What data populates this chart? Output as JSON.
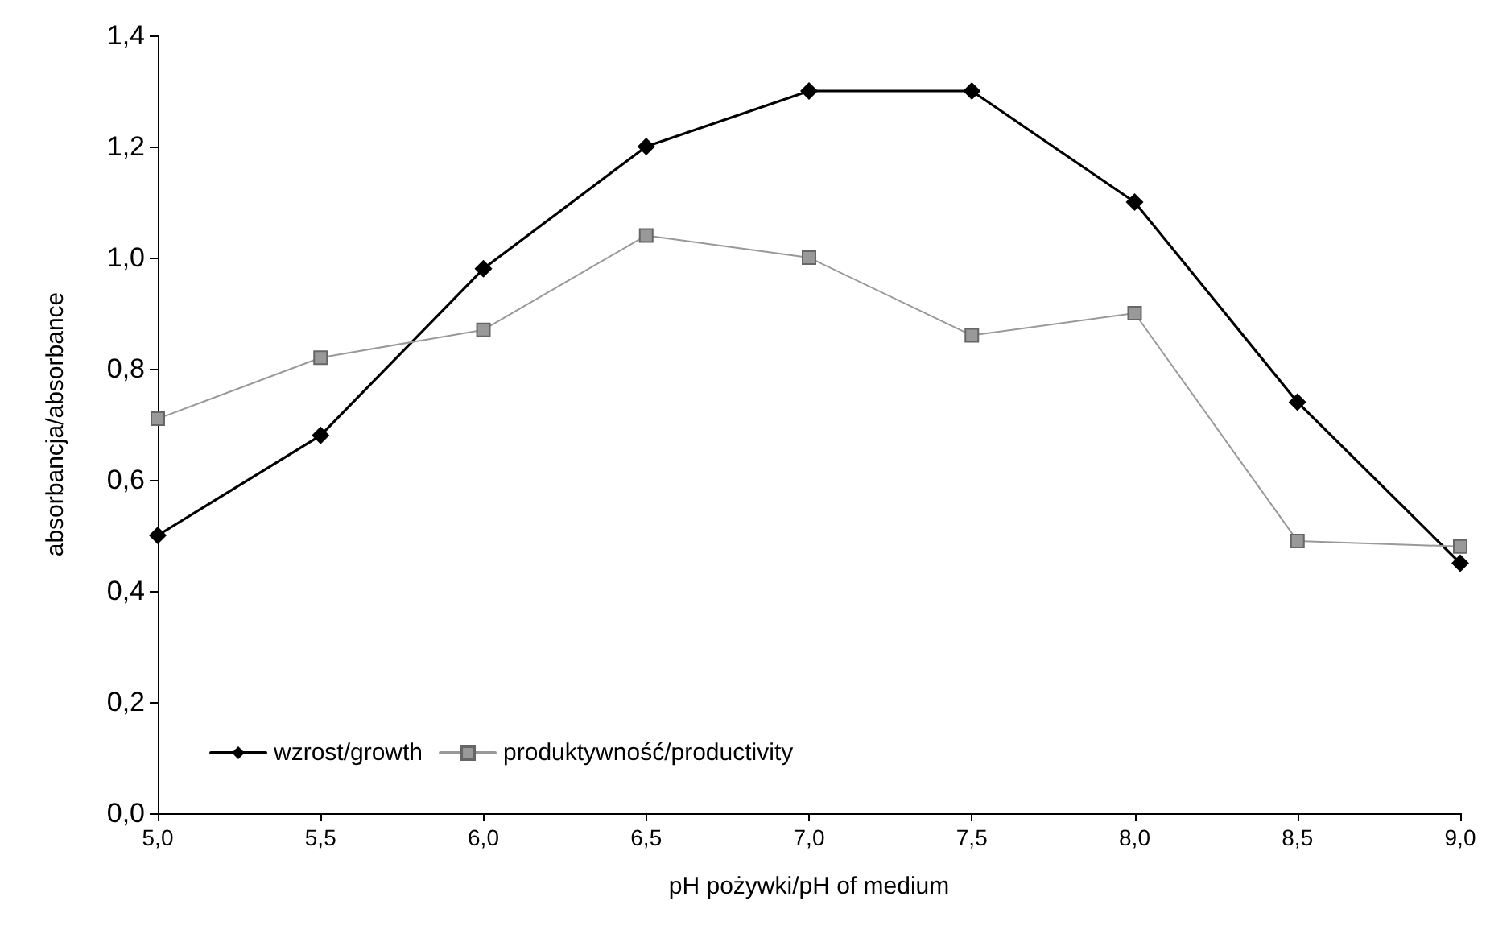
{
  "chart_data": {
    "type": "line",
    "xlabel": "pH pożywki/pH of medium",
    "ylabel": "absorbancja/absorbance",
    "x": [
      5,
      5.5,
      6,
      6.5,
      7,
      7.5,
      8,
      8.5,
      9
    ],
    "series": [
      {
        "name": "wzrost/growth",
        "color": "#000000",
        "marker": "diamond",
        "values": [
          0.5,
          0.68,
          0.98,
          1.2,
          1.3,
          1.3,
          1.1,
          0.74,
          0.45
        ]
      },
      {
        "name": "produktywność/productivity",
        "color": "#999999",
        "marker": "square",
        "values": [
          0.71,
          0.82,
          0.87,
          1.04,
          1.0,
          0.86,
          0.9,
          0.49,
          0.48
        ]
      }
    ],
    "xlim": [
      5,
      9
    ],
    "xticks": [
      {
        "value": 5,
        "label": "5,0"
      },
      {
        "value": 5.5,
        "label": "5,5"
      },
      {
        "value": 6,
        "label": "6,0"
      },
      {
        "value": 6.5,
        "label": "6,5"
      },
      {
        "value": 7,
        "label": "7,0"
      },
      {
        "value": 7.5,
        "label": "7,5"
      },
      {
        "value": 8,
        "label": "8,0"
      },
      {
        "value": 8.5,
        "label": "8,5"
      },
      {
        "value": 9,
        "label": "9,0"
      }
    ],
    "ylim": [
      0,
      1.4
    ],
    "yticks": [
      {
        "value": 0,
        "label": "0,0"
      },
      {
        "value": 0.2,
        "label": "0,2"
      },
      {
        "value": 0.4,
        "label": "0,4"
      },
      {
        "value": 0.6,
        "label": "0,6"
      },
      {
        "value": 0.8,
        "label": "0,8"
      },
      {
        "value": 1.0,
        "label": "1,0"
      },
      {
        "value": 1.2,
        "label": "1,2"
      },
      {
        "value": 1.4,
        "label": "1,4"
      }
    ],
    "grid": false,
    "legend": "bottom left",
    "line_style": "solid"
  }
}
